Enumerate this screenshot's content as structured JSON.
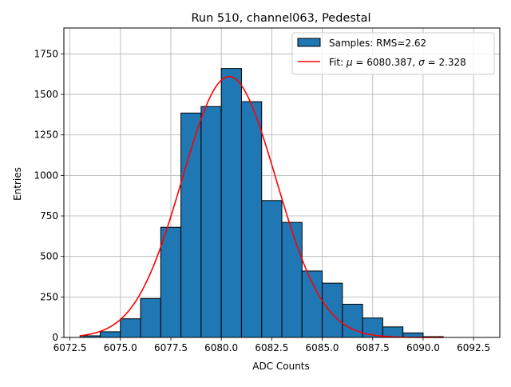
{
  "chart_data": {
    "type": "histogram",
    "title": "Run 510, channel063, Pedestal",
    "xlabel": "ADC Counts",
    "ylabel": "Entries",
    "xlim": [
      6072.2,
      6093.8
    ],
    "ylim": [
      0,
      1910
    ],
    "grid": true,
    "legend_position": "top-right",
    "x_ticks": [
      6072.5,
      6075.0,
      6077.5,
      6080.0,
      6082.5,
      6085.0,
      6087.5,
      6090.0,
      6092.5
    ],
    "x_tick_labels": [
      "6072.5",
      "6075.0",
      "6077.5",
      "6080.0",
      "6082.5",
      "6085.0",
      "6087.5",
      "6090.0",
      "6092.5"
    ],
    "y_ticks": [
      0,
      250,
      500,
      750,
      1000,
      1250,
      1500,
      1750
    ],
    "y_tick_labels": [
      "0",
      "250",
      "500",
      "750",
      "1000",
      "1250",
      "1500",
      "1750"
    ],
    "bin_edges": [
      6073,
      6074,
      6075,
      6076,
      6077,
      6078,
      6079,
      6080,
      6081,
      6082,
      6083,
      6084,
      6085,
      6086,
      6087,
      6088,
      6089,
      6090,
      6091,
      6092,
      6093
    ],
    "counts": [
      10,
      35,
      115,
      240,
      680,
      1385,
      1425,
      1660,
      1455,
      845,
      710,
      410,
      335,
      205,
      120,
      65,
      28,
      5,
      0,
      0
    ],
    "fit": {
      "mu": 6080.387,
      "sigma": 2.328,
      "amplitude": 1610,
      "x_range": [
        6073,
        6091
      ]
    },
    "series": [
      {
        "name": "Samples: RMS=2.62",
        "kind": "bars",
        "color": "#1f77b4",
        "edgecolor": "#000000"
      },
      {
        "name_prefix": "Fit: ",
        "name_mu": "μ",
        "name_mid": " = 6080.387, ",
        "name_sigma": "σ",
        "name_suffix": " = 2.328",
        "kind": "line",
        "color": "#ff0000"
      }
    ]
  }
}
